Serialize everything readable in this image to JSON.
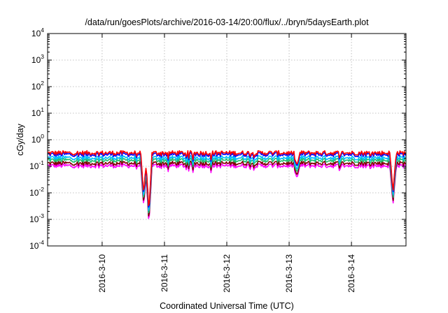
{
  "chart_data": {
    "type": "line",
    "title": "/data/run/goesPlots/archive/2016-03-14/20:00/flux/../bryn/5daysEarth.plot",
    "xlabel": "Coordinated Universal Time (UTC)",
    "ylabel": "cGy/day",
    "yscale": "log",
    "ylim": [
      0.0001,
      10000
    ],
    "yticks": [
      {
        "base": "10",
        "exp": "-4",
        "value": 0.0001
      },
      {
        "base": "10",
        "exp": "-3",
        "value": 0.001
      },
      {
        "base": "10",
        "exp": "-2",
        "value": 0.01
      },
      {
        "base": "10",
        "exp": "-1",
        "value": 0.1
      },
      {
        "base": "10",
        "exp": "0",
        "value": 1
      },
      {
        "base": "10",
        "exp": "1",
        "value": 10
      },
      {
        "base": "10",
        "exp": "2",
        "value": 100
      },
      {
        "base": "10",
        "exp": "3",
        "value": 1000
      },
      {
        "base": "10",
        "exp": "4",
        "value": 10000
      }
    ],
    "xlim": [
      "2016-03-09 03:00",
      "2016-03-14 21:00"
    ],
    "xticks": [
      "2016-3-10",
      "2016-3-11",
      "2016-3-12",
      "2016-3-13",
      "2016-3-14"
    ],
    "grid": true,
    "legend": "none",
    "series": [
      {
        "color": "#ff0000",
        "level": 0.32
      },
      {
        "color": "#0000ff",
        "level": 0.28
      },
      {
        "color": "#00bfff",
        "level": 0.21
      },
      {
        "color": "#20c070",
        "level": 0.17
      },
      {
        "color": "#800000",
        "level": 0.13
      },
      {
        "color": "#ff00ff",
        "level": 0.105
      }
    ],
    "dips": [
      {
        "time": "2016-03-10 16:00",
        "min": 0.003
      },
      {
        "time": "2016-03-10 18:00",
        "min": 0.0006
      },
      {
        "time": "2016-03-13 03:00",
        "min": 0.035
      },
      {
        "time": "2016-03-14 16:00",
        "min": 0.0035
      }
    ]
  }
}
